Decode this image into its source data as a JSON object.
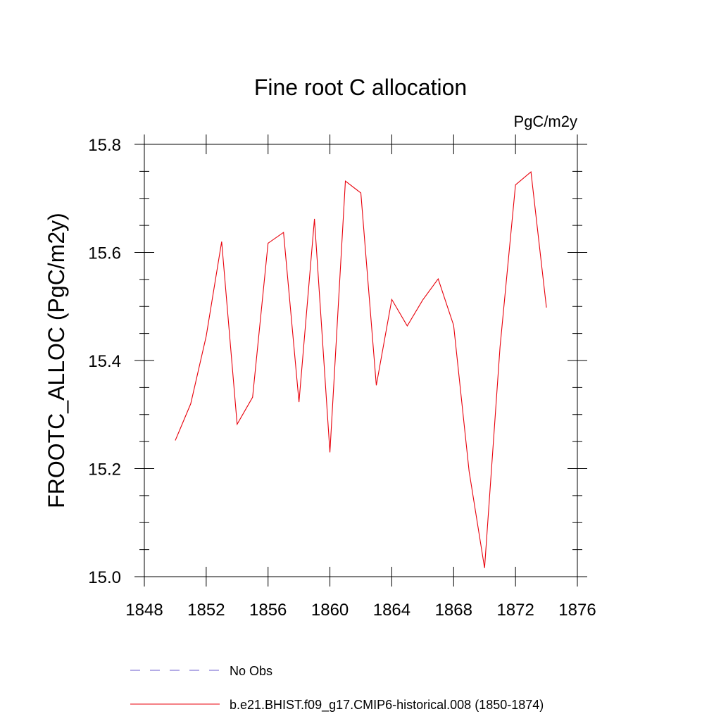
{
  "chart_data": {
    "type": "line",
    "title": "Fine root C allocation",
    "units_label": "PgC/m2y",
    "ylabel": "FROOTC_ALLOC  (PgC/m2y)",
    "xlabel": "",
    "xlim": [
      1848,
      1876
    ],
    "ylim": [
      15.0,
      15.8
    ],
    "x_ticks": [
      1848,
      1852,
      1856,
      1860,
      1864,
      1868,
      1872,
      1876
    ],
    "y_ticks": [
      15.0,
      15.2,
      15.4,
      15.6,
      15.8
    ],
    "x_tick_labels": [
      "1848",
      "1852",
      "1856",
      "1860",
      "1864",
      "1868",
      "1872",
      "1876"
    ],
    "y_tick_labels": [
      "15.0",
      "15.2",
      "15.4",
      "15.6",
      "15.8"
    ],
    "grid": false,
    "legend_position": "bottom",
    "series": [
      {
        "name": "b.e21.BHIST.f09_g17.CMIP6-historical.008 (1850-1874)",
        "color": "#e8000b",
        "dash": "solid",
        "x": [
          1850,
          1851,
          1852,
          1853,
          1854,
          1855,
          1856,
          1857,
          1858,
          1859,
          1860,
          1861,
          1862,
          1863,
          1864,
          1865,
          1866,
          1867,
          1868,
          1869,
          1870,
          1871,
          1872,
          1873,
          1874
        ],
        "y": [
          15.252,
          15.32,
          15.445,
          15.62,
          15.282,
          15.332,
          15.617,
          15.637,
          15.323,
          15.662,
          15.23,
          15.732,
          15.71,
          15.354,
          15.513,
          15.464,
          15.512,
          15.551,
          15.465,
          15.195,
          15.016,
          15.425,
          15.725,
          15.749,
          15.498
        ]
      }
    ],
    "legend": [
      {
        "label": "No Obs",
        "color": "#6a5acd",
        "dash": "dashed"
      },
      {
        "label": "b.e21.BHIST.f09_g17.CMIP6-historical.008 (1850-1874)",
        "color": "#e8000b",
        "dash": "solid"
      }
    ]
  }
}
